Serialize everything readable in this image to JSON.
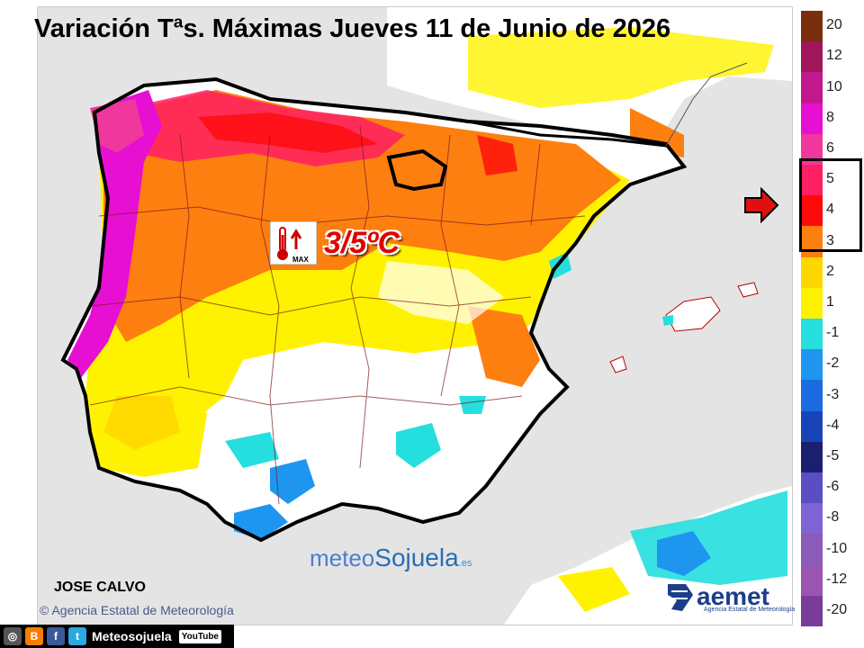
{
  "title": "Variación Tªs. Máximas Jueves 11 de Junio de 2026",
  "highlight": {
    "value": "3/5ºC",
    "icon_label": "MAX",
    "icon": "thermometer-up-icon"
  },
  "legend": {
    "labels": [
      "20",
      "12",
      "10",
      "8",
      "6",
      "5",
      "4",
      "3",
      "2",
      "1",
      "-1",
      "-2",
      "-3",
      "-4",
      "-5",
      "-6",
      "-8",
      "-10",
      "-12",
      "-20"
    ],
    "colors": [
      "#7a2e0e",
      "#a0165a",
      "#c2188e",
      "#e60fd2",
      "#f0379e",
      "#ff1f63",
      "#fe0a0a",
      "#fd7f10",
      "#ffd700",
      "#fff200",
      "#25dede",
      "#1e96f0",
      "#1a6ce0",
      "#1844b8",
      "#1a1f6e",
      "#5a4ec2",
      "#7e64d6",
      "#8c5ab8",
      "#9a55b0",
      "#7a3c9a"
    ],
    "highlighted_range": [
      "5",
      "3"
    ]
  },
  "author": "JOSE CALVO",
  "credit": "Agencia Estatal de Meteorología",
  "brand": {
    "part1": "meteo",
    "part2": "Sojuela",
    "part3": ".es"
  },
  "aemet": {
    "name": "aemet",
    "sub": "Agencia Estatal de Meteorología"
  },
  "social": {
    "name": "Meteosojuela",
    "youtube": "YouTube"
  }
}
